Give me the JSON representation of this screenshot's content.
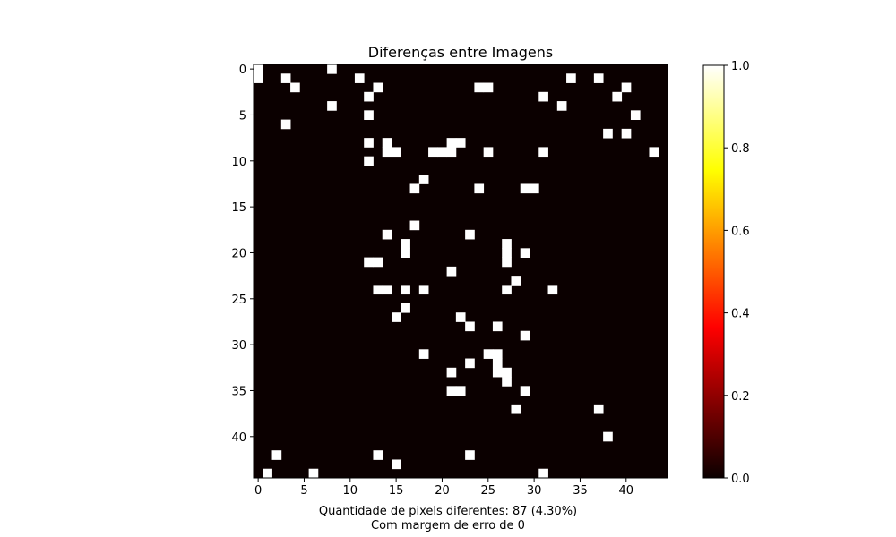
{
  "chart_data": {
    "type": "heatmap",
    "title": "Diferenças entre Imagens",
    "xlabel_lines": [
      "Quantidade de pixels diferentes: 87 (4.30%)",
      "Com margem de erro de 0"
    ],
    "rows": 45,
    "cols": 45,
    "value_range": [
      0,
      1
    ],
    "colormap": "hot",
    "x_ticks": [
      0,
      5,
      10,
      15,
      20,
      25,
      30,
      35,
      40
    ],
    "y_ticks": [
      0,
      5,
      10,
      15,
      20,
      25,
      30,
      35,
      40
    ],
    "colorbar_ticks": [
      "0.0",
      "0.2",
      "0.4",
      "0.6",
      "0.8",
      "1.0"
    ],
    "colorbar_values": [
      0.0,
      0.2,
      0.4,
      0.6,
      0.8,
      1.0
    ],
    "diff_pixels": [
      [
        0,
        0
      ],
      [
        0,
        8
      ],
      [
        1,
        0
      ],
      [
        1,
        3
      ],
      [
        1,
        11
      ],
      [
        1,
        34
      ],
      [
        1,
        37
      ],
      [
        2,
        4
      ],
      [
        2,
        13
      ],
      [
        2,
        24
      ],
      [
        2,
        25
      ],
      [
        2,
        40
      ],
      [
        3,
        12
      ],
      [
        3,
        31
      ],
      [
        3,
        39
      ],
      [
        4,
        8
      ],
      [
        4,
        33
      ],
      [
        5,
        12
      ],
      [
        5,
        41
      ],
      [
        6,
        3
      ],
      [
        7,
        38
      ],
      [
        7,
        40
      ],
      [
        8,
        12
      ],
      [
        8,
        14
      ],
      [
        8,
        21
      ],
      [
        8,
        22
      ],
      [
        9,
        14
      ],
      [
        9,
        15
      ],
      [
        9,
        19
      ],
      [
        9,
        20
      ],
      [
        9,
        21
      ],
      [
        9,
        25
      ],
      [
        9,
        31
      ],
      [
        9,
        43
      ],
      [
        10,
        12
      ],
      [
        12,
        18
      ],
      [
        13,
        17
      ],
      [
        13,
        24
      ],
      [
        13,
        29
      ],
      [
        13,
        30
      ],
      [
        17,
        17
      ],
      [
        18,
        14
      ],
      [
        18,
        23
      ],
      [
        19,
        16
      ],
      [
        19,
        27
      ],
      [
        20,
        16
      ],
      [
        20,
        27
      ],
      [
        20,
        29
      ],
      [
        21,
        12
      ],
      [
        21,
        13
      ],
      [
        21,
        27
      ],
      [
        22,
        21
      ],
      [
        23,
        28
      ],
      [
        24,
        13
      ],
      [
        24,
        14
      ],
      [
        24,
        16
      ],
      [
        24,
        18
      ],
      [
        24,
        27
      ],
      [
        24,
        32
      ],
      [
        26,
        16
      ],
      [
        27,
        15
      ],
      [
        27,
        22
      ],
      [
        28,
        23
      ],
      [
        28,
        26
      ],
      [
        29,
        29
      ],
      [
        31,
        18
      ],
      [
        31,
        25
      ],
      [
        31,
        26
      ],
      [
        32,
        23
      ],
      [
        32,
        26
      ],
      [
        33,
        21
      ],
      [
        33,
        26
      ],
      [
        33,
        27
      ],
      [
        34,
        27
      ],
      [
        35,
        21
      ],
      [
        35,
        22
      ],
      [
        35,
        29
      ],
      [
        37,
        28
      ],
      [
        37,
        37
      ],
      [
        40,
        38
      ],
      [
        42,
        2
      ],
      [
        42,
        13
      ],
      [
        42,
        23
      ],
      [
        43,
        15
      ],
      [
        44,
        1
      ],
      [
        44,
        6
      ],
      [
        44,
        31
      ]
    ]
  }
}
